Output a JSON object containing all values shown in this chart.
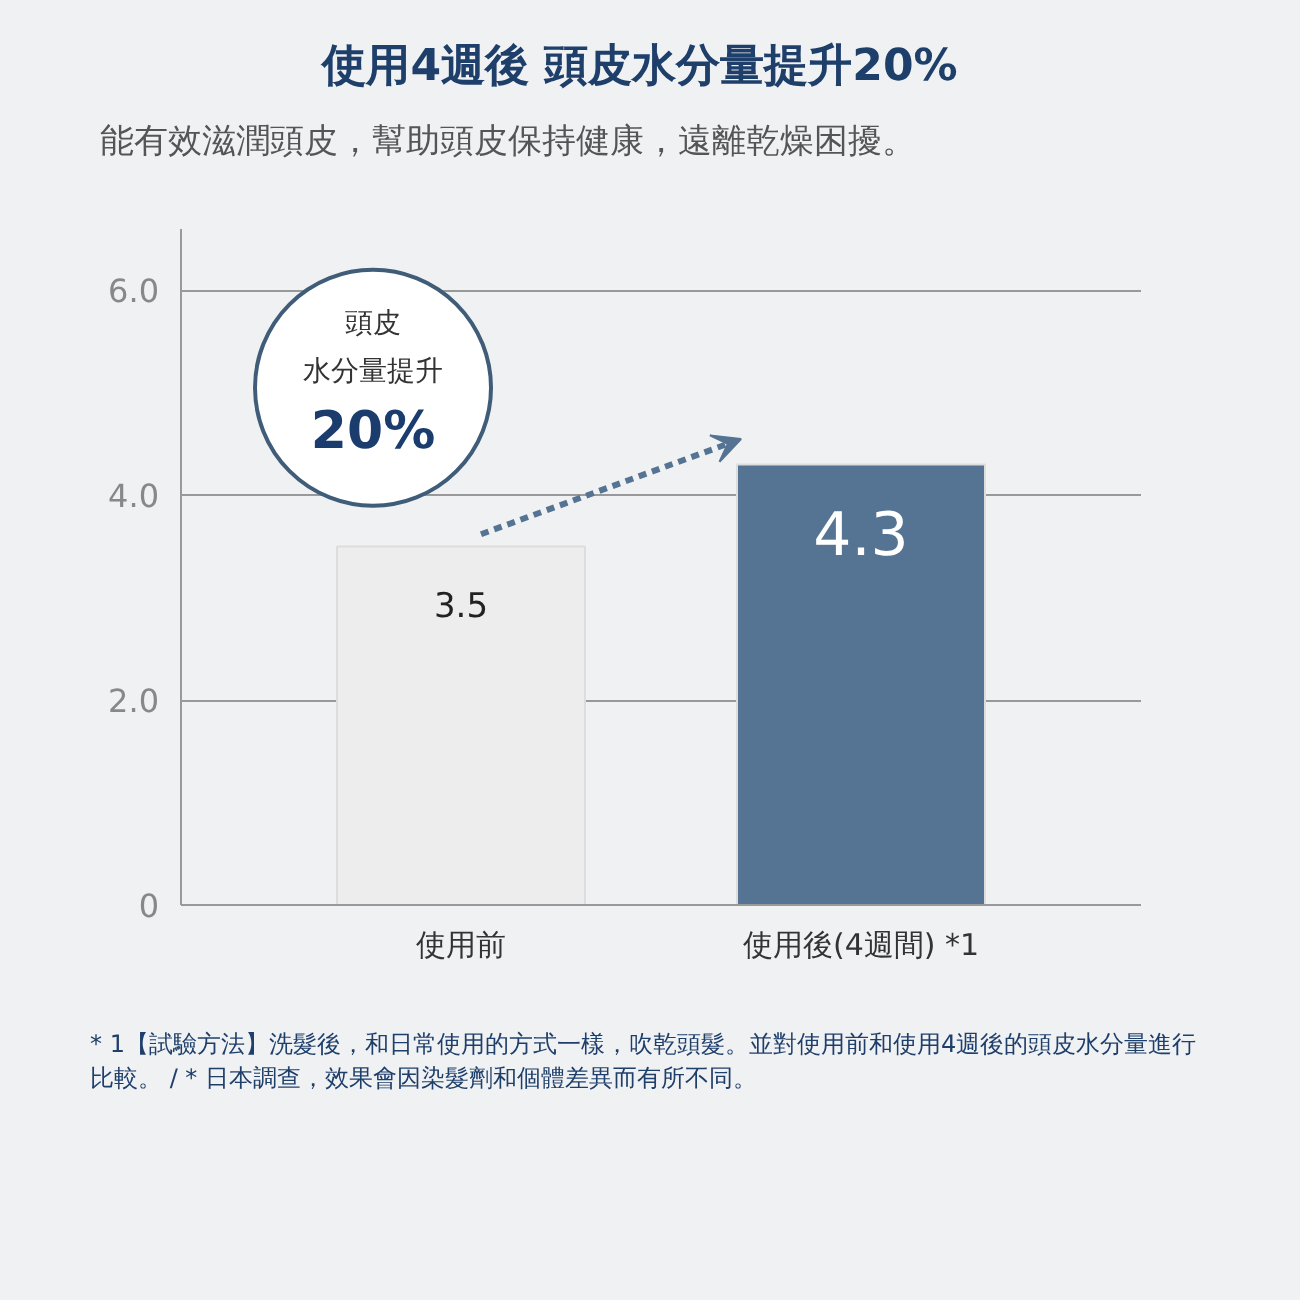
{
  "chart_data": {
    "type": "bar",
    "title": "使用4週後 頭皮水分量提升20%",
    "subtitle": "能有效滋潤頭皮，幫助頭皮保持健康，遠離乾燥困擾。",
    "categories": [
      "使用前",
      "使用後(4週間) *1"
    ],
    "values": [
      3.5,
      4.3
    ],
    "colors": [
      "#ededed",
      "#557393"
    ],
    "ylim": [
      0,
      6.6
    ],
    "yticks": [
      0,
      {
        "value": 2,
        "label": "2.0"
      },
      {
        "value": 4,
        "label": "4.0"
      },
      {
        "value": 6,
        "label": "6.0"
      }
    ],
    "grid": "y",
    "data_labels": true,
    "annotations": [
      "頭皮",
      "水分量提升",
      "20%",
      "* 1【試驗方法】洗髮後，和日常使用的方式一樣，吹乾頭髮。並對使用前和使用4週後的頭皮水分量進行比較。 / * 日本調查，效果會因染髮劑和個體差異而有所不同。"
    ]
  }
}
